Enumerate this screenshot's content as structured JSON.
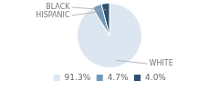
{
  "chart_data": {
    "type": "pie",
    "categories": [
      "91.3%",
      "4.7%",
      "4.0%"
    ],
    "values": [
      91.3,
      4.7,
      4.0
    ],
    "colors": [
      "#dce6f1",
      "#7098b8",
      "#2e4f6e"
    ],
    "annotations": [
      "WHITE",
      "HISPANIC",
      "BLACK"
    ],
    "legend": "bottom"
  }
}
